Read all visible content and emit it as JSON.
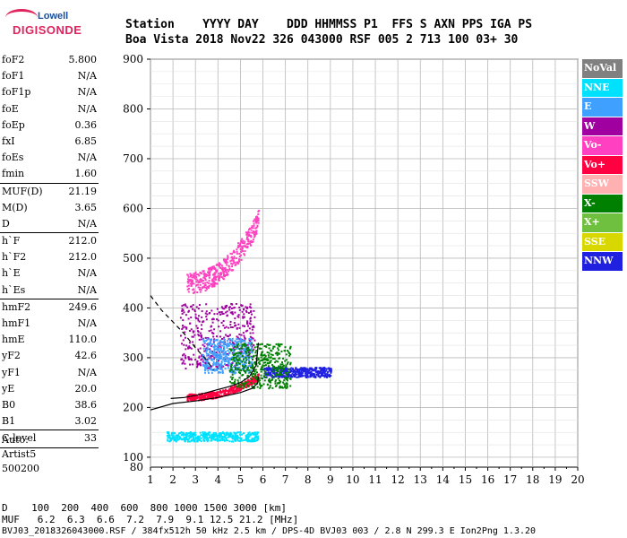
{
  "logo": {
    "top": "Lowell",
    "bottom": "DIGISONDE"
  },
  "header": {
    "labels": [
      "Station",
      "YYYY",
      "DAY",
      "DDD",
      "HHMMSS",
      "P1",
      "FFS",
      "S",
      "AXN",
      "PPS",
      "IGA",
      "PS"
    ],
    "station": "Boa Vista",
    "year": "2018",
    "day": "Nov22",
    "ddd": "326",
    "hhmmss": "043000",
    "p1": "RSF",
    "ffs": "005",
    "s": "2",
    "axn": "713",
    "pps": "100",
    "iga": "03+",
    "ps": "30"
  },
  "params": [
    {
      "label": "foF2",
      "value": "5.800"
    },
    {
      "label": "foF1",
      "value": "N/A"
    },
    {
      "label": "foF1p",
      "value": "N/A"
    },
    {
      "label": "foE",
      "value": "N/A"
    },
    {
      "label": "foEp",
      "value": "0.36"
    },
    {
      "label": "fxI",
      "value": "6.85"
    },
    {
      "label": "foEs",
      "value": "N/A"
    },
    {
      "label": "fmin",
      "value": "1.60",
      "sep_after": true
    },
    {
      "label": "MUF(D)",
      "value": "21.19"
    },
    {
      "label": "M(D)",
      "value": "3.65"
    },
    {
      "label": "D",
      "value": "N/A",
      "sep_after": true
    },
    {
      "label": "h`F",
      "value": "212.0"
    },
    {
      "label": "h`F2",
      "value": "212.0"
    },
    {
      "label": "h`E",
      "value": "N/A"
    },
    {
      "label": "h`Es",
      "value": "N/A",
      "sep_after": true
    },
    {
      "label": "hmF2",
      "value": "249.6"
    },
    {
      "label": "hmF1",
      "value": "N/A"
    },
    {
      "label": "hmE",
      "value": "110.0"
    },
    {
      "label": "yF2",
      "value": "42.6"
    },
    {
      "label": "yF1",
      "value": "N/A"
    },
    {
      "label": "yE",
      "value": "20.0"
    },
    {
      "label": "B0",
      "value": "38.6"
    },
    {
      "label": "B1",
      "value": "3.02",
      "sep_after": true
    },
    {
      "label": "C-level",
      "value": "33",
      "sep_after": true
    }
  ],
  "info": {
    "line1": "Auto:",
    "line2": "Artist5",
    "line3": "500200"
  },
  "legend": [
    {
      "label": "NoVal",
      "color": "#808080"
    },
    {
      "label": "NNE",
      "color": "#00e0ff"
    },
    {
      "label": "E",
      "color": "#40a0ff"
    },
    {
      "label": "W",
      "color": "#a000a0"
    },
    {
      "label": "Vo-",
      "color": "#ff40c0"
    },
    {
      "label": "Vo+",
      "color": "#ff0040"
    },
    {
      "label": "SSW",
      "color": "#ffb0b0"
    },
    {
      "label": "X-",
      "color": "#008000"
    },
    {
      "label": "X+",
      "color": "#70c040"
    },
    {
      "label": "SSE",
      "color": "#d8d800"
    },
    {
      "label": "NNW",
      "color": "#2020e0"
    }
  ],
  "footer": {
    "d_label": "D",
    "d_values": [
      "100",
      "200",
      "400",
      "600",
      "800",
      "1000",
      "1500",
      "3000",
      "[km]"
    ],
    "muf_label": "MUF",
    "muf_values": [
      "6.2",
      "6.3",
      "6.6",
      "7.2",
      "7.9",
      "9.1",
      "12.5",
      "21.2",
      "[MHz]"
    ],
    "file_line": "BVJ03_2018326043000.RSF / 384fx512h 50 kHz 2.5 km / DPS-4D BVJ03 003 / 2.8 N 299.3 E Ion2Png 1.3.20"
  },
  "chart_data": {
    "type": "scatter",
    "title": "",
    "xlabel": "",
    "ylabel": "",
    "xlim": [
      1,
      20
    ],
    "ylim": [
      80,
      900
    ],
    "x_ticks": [
      1,
      2,
      3,
      4,
      5,
      6,
      7,
      8,
      9,
      10,
      11,
      12,
      13,
      14,
      15,
      16,
      17,
      18,
      19,
      20
    ],
    "y_ticks": [
      100,
      200,
      300,
      400,
      500,
      600,
      700,
      800,
      900
    ],
    "grid": true,
    "legend_placement": "right",
    "clusters": [
      {
        "name": "F-trace o",
        "color": "#ff0040",
        "x_range": [
          2.6,
          5.8
        ],
        "y_range": [
          215,
          270
        ],
        "trend": "rising"
      },
      {
        "name": "F-trace W",
        "color": "#a000a0",
        "x_range": [
          2.3,
          5.6
        ],
        "y_range": [
          280,
          410
        ]
      },
      {
        "name": "F-trace E",
        "color": "#40a0ff",
        "x_range": [
          3.3,
          5.5
        ],
        "y_range": [
          270,
          340
        ]
      },
      {
        "name": "F-spread NNW",
        "color": "#2020e0",
        "x_range": [
          6.0,
          9.0
        ],
        "y_range": [
          262,
          282
        ]
      },
      {
        "name": "F-spread X",
        "color": "#008000",
        "x_range": [
          4.5,
          7.2
        ],
        "y_range": [
          240,
          330
        ]
      },
      {
        "name": "2F echo",
        "color": "#ff40c0",
        "x_range": [
          2.6,
          5.8
        ],
        "y_range": [
          430,
          600
        ],
        "trend": "rising"
      },
      {
        "name": "low echo",
        "color": "#00e0ff",
        "x_range": [
          1.7,
          5.8
        ],
        "y_range": [
          133,
          152
        ]
      }
    ],
    "profile_curves": [
      {
        "name": "virtual height fit",
        "color": "#000000",
        "points": [
          [
            1.9,
            218
          ],
          [
            2.5,
            220
          ],
          [
            3.0,
            224
          ],
          [
            3.5,
            230
          ],
          [
            4.0,
            236
          ],
          [
            4.5,
            242
          ],
          [
            5.0,
            250
          ],
          [
            5.4,
            262
          ],
          [
            5.7,
            285
          ],
          [
            5.8,
            330
          ]
        ]
      },
      {
        "name": "true height profile",
        "color": "#000000",
        "points": [
          [
            1.0,
            195
          ],
          [
            2.0,
            208
          ],
          [
            3.0,
            213
          ],
          [
            4.0,
            220
          ],
          [
            5.0,
            230
          ],
          [
            5.5,
            238
          ],
          [
            5.75,
            248
          ],
          [
            5.8,
            262
          ]
        ]
      },
      {
        "name": "topside extrapolation",
        "color": "#000000",
        "dashed": true,
        "points": [
          [
            1.0,
            425
          ],
          [
            1.5,
            395
          ],
          [
            2.0,
            372
          ],
          [
            2.5,
            348
          ],
          [
            3.0,
            320
          ],
          [
            3.5,
            295
          ],
          [
            3.8,
            275
          ]
        ]
      }
    ]
  }
}
